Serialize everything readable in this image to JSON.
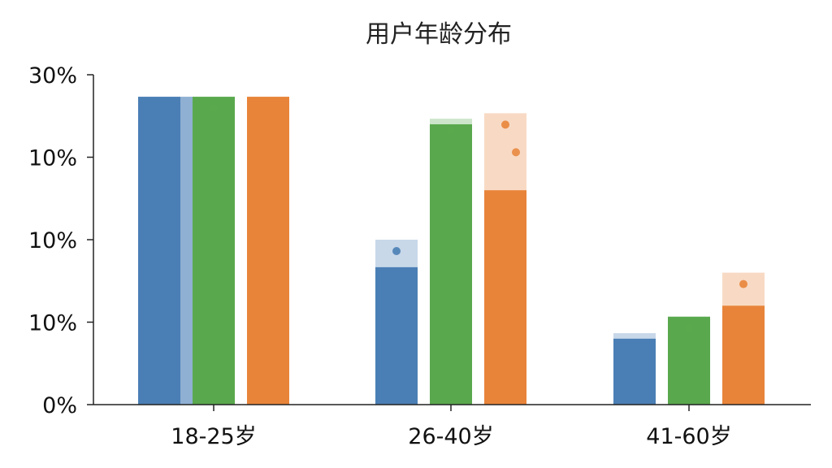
{
  "chart_data": {
    "type": "bar",
    "title": "用户年龄分布",
    "xlabel": "",
    "ylabel": "",
    "categories": [
      "18-25岁",
      "26-40岁",
      "41-60岁"
    ],
    "y_tick_labels": [
      "0%",
      "10%",
      "10%",
      "10%",
      "30%"
    ],
    "ylim": [
      0,
      30
    ],
    "grid": false,
    "series": [
      {
        "color": "#4a7fb5",
        "values": [
          28,
          12.5,
          6
        ],
        "overlay_values": [
          28,
          15,
          6.5
        ]
      },
      {
        "color": "#5aa84e",
        "values": [
          28,
          25.5,
          8
        ],
        "overlay_values": [
          28,
          26,
          8
        ]
      },
      {
        "color": "#e8843a",
        "values": [
          28,
          19.5,
          9
        ],
        "overlay_values": [
          28,
          26.5,
          12
        ]
      }
    ]
  }
}
